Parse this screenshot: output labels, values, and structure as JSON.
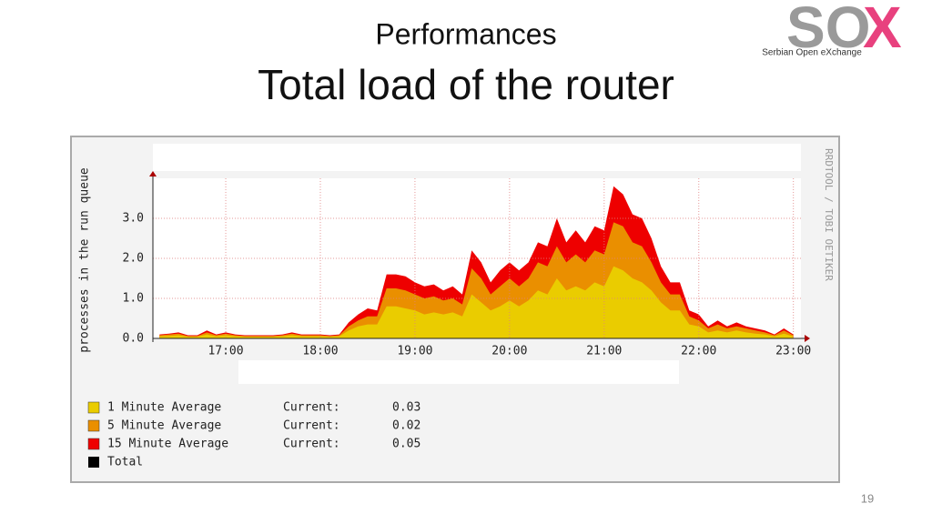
{
  "slide": {
    "subtitle": "Performances",
    "title": "Total load of the router",
    "logo_main": "SO",
    "logo_accent": "X",
    "logo_caption": "Serbian Open eXchange",
    "page_number": "19"
  },
  "chart_data": {
    "type": "area",
    "y_label": "processes in the run queue",
    "watermark": "RRDTOOL / TOBI OETIKER",
    "current_label": "Current:",
    "x": [
      16.3,
      16.4,
      16.5,
      16.6,
      16.7,
      16.8,
      16.9,
      17.0,
      17.1,
      17.2,
      17.3,
      17.4,
      17.5,
      17.6,
      17.7,
      17.8,
      17.9,
      18.0,
      18.1,
      18.2,
      18.3,
      18.4,
      18.5,
      18.6,
      18.7,
      18.8,
      18.9,
      19.0,
      19.1,
      19.2,
      19.3,
      19.4,
      19.5,
      19.6,
      19.7,
      19.8,
      19.9,
      20.0,
      20.1,
      20.2,
      20.3,
      20.4,
      20.5,
      20.6,
      20.7,
      20.8,
      20.9,
      21.0,
      21.1,
      21.2,
      21.3,
      21.4,
      21.5,
      21.6,
      21.7,
      21.8,
      21.9,
      22.0,
      22.1,
      22.2,
      22.3,
      22.4,
      22.5,
      22.6,
      22.7,
      22.8,
      22.9,
      23.0
    ],
    "series": [
      {
        "name": "15 Minute Average",
        "color": "#ee0000",
        "current": 0.05,
        "values": [
          0.1,
          0.12,
          0.15,
          0.08,
          0.08,
          0.2,
          0.1,
          0.15,
          0.1,
          0.08,
          0.08,
          0.08,
          0.08,
          0.1,
          0.15,
          0.1,
          0.1,
          0.1,
          0.08,
          0.1,
          0.4,
          0.6,
          0.75,
          0.7,
          1.6,
          1.6,
          1.55,
          1.4,
          1.3,
          1.35,
          1.2,
          1.3,
          1.1,
          2.2,
          1.9,
          1.4,
          1.7,
          1.9,
          1.7,
          1.9,
          2.4,
          2.3,
          3.0,
          2.4,
          2.7,
          2.4,
          2.8,
          2.7,
          3.8,
          3.6,
          3.1,
          3.0,
          2.5,
          1.8,
          1.4,
          1.4,
          0.7,
          0.6,
          0.3,
          0.45,
          0.3,
          0.4,
          0.3,
          0.25,
          0.2,
          0.1,
          0.25,
          0.1
        ]
      },
      {
        "name": "5 Minute Average",
        "color": "#ea8f00",
        "current": 0.02,
        "values": [
          0.08,
          0.1,
          0.12,
          0.06,
          0.06,
          0.15,
          0.08,
          0.12,
          0.08,
          0.06,
          0.06,
          0.06,
          0.06,
          0.08,
          0.12,
          0.08,
          0.08,
          0.08,
          0.06,
          0.08,
          0.3,
          0.45,
          0.55,
          0.55,
          1.25,
          1.25,
          1.2,
          1.1,
          1.0,
          1.05,
          0.95,
          1.0,
          0.85,
          1.75,
          1.5,
          1.1,
          1.3,
          1.5,
          1.3,
          1.5,
          1.9,
          1.8,
          2.3,
          1.9,
          2.1,
          1.9,
          2.2,
          2.1,
          2.9,
          2.8,
          2.4,
          2.3,
          1.9,
          1.4,
          1.1,
          1.1,
          0.55,
          0.45,
          0.25,
          0.35,
          0.25,
          0.3,
          0.25,
          0.2,
          0.15,
          0.08,
          0.2,
          0.08
        ]
      },
      {
        "name": "1 Minute Average",
        "color": "#eacc00",
        "current": 0.03,
        "values": [
          0.05,
          0.06,
          0.08,
          0.04,
          0.04,
          0.1,
          0.05,
          0.08,
          0.05,
          0.04,
          0.04,
          0.04,
          0.04,
          0.05,
          0.08,
          0.05,
          0.05,
          0.05,
          0.04,
          0.05,
          0.2,
          0.3,
          0.35,
          0.35,
          0.8,
          0.8,
          0.75,
          0.7,
          0.6,
          0.65,
          0.6,
          0.65,
          0.55,
          1.1,
          0.9,
          0.7,
          0.8,
          0.95,
          0.8,
          0.95,
          1.2,
          1.1,
          1.5,
          1.2,
          1.3,
          1.2,
          1.4,
          1.3,
          1.8,
          1.7,
          1.5,
          1.4,
          1.2,
          0.9,
          0.7,
          0.7,
          0.35,
          0.3,
          0.15,
          0.2,
          0.15,
          0.2,
          0.15,
          0.12,
          0.1,
          0.05,
          0.12,
          0.05
        ]
      }
    ],
    "legend_order": [
      2,
      1,
      0
    ],
    "total_legend": {
      "name": "Total",
      "color": "#000000"
    },
    "xlim": [
      16.23,
      23.08
    ],
    "ylim": [
      0,
      4
    ],
    "xticks": [
      {
        "value": 17,
        "label": "17:00"
      },
      {
        "value": 18,
        "label": "18:00"
      },
      {
        "value": 19,
        "label": "19:00"
      },
      {
        "value": 20,
        "label": "20:00"
      },
      {
        "value": 21,
        "label": "21:00"
      },
      {
        "value": 22,
        "label": "22:00"
      },
      {
        "value": 23,
        "label": "23:00"
      }
    ],
    "yticks": [
      {
        "value": 0,
        "label": "0.0"
      },
      {
        "value": 1,
        "label": "1.0"
      },
      {
        "value": 2,
        "label": "2.0"
      },
      {
        "value": 3,
        "label": "3.0"
      }
    ],
    "grid": true
  }
}
